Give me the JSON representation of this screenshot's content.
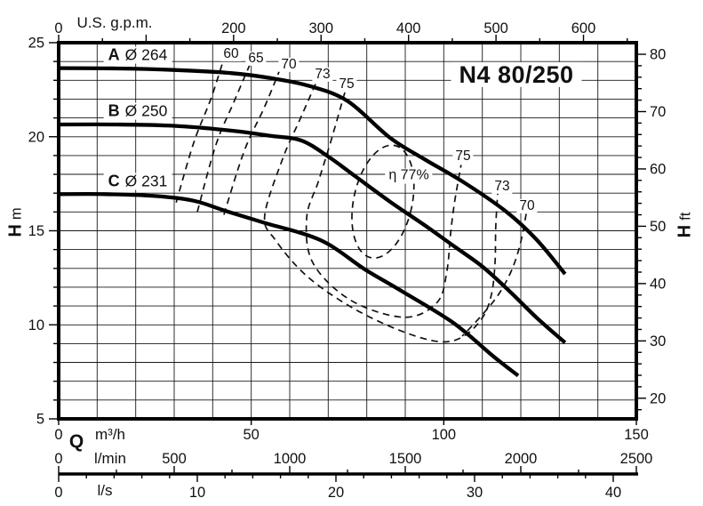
{
  "chart_data": {
    "type": "line",
    "title": "N4 80/250",
    "x_axes": {
      "us_gpm": {
        "label": "U.S. g.p.m.",
        "ticks_labeled": [
          0,
          200,
          300,
          400,
          500,
          600
        ],
        "minor_step": 50,
        "max": 650
      },
      "m3h": {
        "prefix": "Q",
        "label": "m³/h",
        "ticks_labeled": [
          0,
          50,
          100,
          150
        ],
        "range": [
          0,
          150
        ]
      },
      "lmin": {
        "label": "l/min",
        "ticks_labeled": [
          0,
          500,
          1000,
          1500,
          2000,
          2500
        ],
        "minor_step": 250,
        "max": 2500
      },
      "ls": {
        "label": "l/s",
        "ticks_labeled": [
          0,
          10,
          20,
          30,
          40
        ],
        "minor_step": 2,
        "max": 40
      }
    },
    "y_axes": {
      "h_m": {
        "label_bold": "H",
        "label_unit": "m",
        "range": [
          5,
          25
        ],
        "ticks_labeled": [
          5,
          10,
          15,
          20,
          25
        ],
        "minor_step": 1
      },
      "h_ft": {
        "label_bold": "H",
        "label_unit": "ft",
        "ticks_labeled": [
          20,
          30,
          40,
          50,
          60,
          70,
          80
        ],
        "minor_step": 2
      }
    },
    "curves": [
      {
        "id": "A",
        "diameter": "Ø 264",
        "points_q_h": [
          [
            0,
            23.65
          ],
          [
            15,
            23.63
          ],
          [
            30,
            23.55
          ],
          [
            45,
            23.38
          ],
          [
            55,
            23.12
          ],
          [
            65,
            22.7
          ],
          [
            75,
            21.9
          ],
          [
            86,
            19.95
          ],
          [
            95,
            18.8
          ],
          [
            105,
            17.6
          ],
          [
            116,
            16.05
          ],
          [
            124,
            14.55
          ],
          [
            131.5,
            12.7
          ]
        ]
      },
      {
        "id": "B",
        "diameter": "Ø 250",
        "points_q_h": [
          [
            0,
            20.65
          ],
          [
            15,
            20.65
          ],
          [
            30,
            20.58
          ],
          [
            45,
            20.32
          ],
          [
            55,
            20.05
          ],
          [
            63,
            19.8
          ],
          [
            70,
            18.95
          ],
          [
            77,
            17.9
          ],
          [
            86,
            16.55
          ],
          [
            95,
            15.3
          ],
          [
            102.5,
            14.2
          ],
          [
            110,
            13.1
          ],
          [
            117,
            11.8
          ],
          [
            124,
            10.4
          ],
          [
            131.5,
            9.05
          ]
        ]
      },
      {
        "id": "C",
        "diameter": "Ø 231",
        "points_q_h": [
          [
            0,
            16.95
          ],
          [
            12,
            16.95
          ],
          [
            25,
            16.85
          ],
          [
            35,
            16.6
          ],
          [
            43,
            16.08
          ],
          [
            53,
            15.45
          ],
          [
            68,
            14.5
          ],
          [
            79.5,
            12.95
          ],
          [
            89,
            11.8
          ],
          [
            102.5,
            10.1
          ],
          [
            113,
            8.3
          ],
          [
            119.3,
            7.3
          ]
        ]
      }
    ],
    "efficiency": {
      "labels": [
        {
          "text": "60"
        },
        {
          "text": "65"
        },
        {
          "text": "70"
        },
        {
          "text": "73"
        },
        {
          "text": "75"
        },
        {
          "text": "75"
        },
        {
          "text": "73"
        },
        {
          "text": "70"
        },
        {
          "text": "η 77%"
        }
      ],
      "contours": [
        {
          "value": 60,
          "points_q_h": [
            [
              30.5,
              16.5
            ],
            [
              35.1,
              19.7
            ],
            [
              39.5,
              22.0
            ],
            [
              42.9,
              24.15
            ]
          ]
        },
        {
          "value": 65,
          "points_q_h": [
            [
              36.0,
              16.0
            ],
            [
              40.8,
              19.55
            ],
            [
              45.5,
              21.85
            ],
            [
              50.1,
              24.05
            ]
          ]
        },
        {
          "value": 70,
          "points_q_h": [
            [
              42.9,
              15.85
            ],
            [
              48.2,
              19.25
            ],
            [
              53.5,
              21.6
            ],
            [
              58.2,
              23.95
            ]
          ]
        },
        {
          "value": 73,
          "points_q_h": [
            [
              66.7,
              22.8
            ],
            [
              62.5,
              20.85
            ],
            [
              58.2,
              18.85
            ],
            [
              53.5,
              15.8
            ],
            [
              56.3,
              14.5
            ],
            [
              64.4,
              12.6
            ],
            [
              75.9,
              10.95
            ],
            [
              88.6,
              9.7
            ],
            [
              99,
              9.1
            ],
            [
              105.2,
              9.4
            ],
            [
              110.1,
              10.4
            ],
            [
              112.4,
              11.65
            ],
            [
              113.3,
              13.3
            ],
            [
              113.5,
              15.2
            ],
            [
              114,
              17.0
            ]
          ]
        },
        {
          "value": 75,
          "points_q_h": [
            [
              74.3,
              22.35
            ],
            [
              70.6,
              19.7
            ],
            [
              67.4,
              17.6
            ],
            [
              64.4,
              15.7
            ],
            [
              66,
              13.3
            ],
            [
              75.9,
              11.3
            ],
            [
              89.8,
              10.4
            ],
            [
              98.3,
              11.2
            ],
            [
              100.8,
              12.85
            ],
            [
              101.8,
              14.9
            ],
            [
              102.9,
              16.65
            ],
            [
              104.5,
              18.5
            ]
          ]
        },
        {
          "value": 70,
          "points_q_h": [
            [
              121.4,
              15.9
            ],
            [
              119.8,
              14.25
            ],
            [
              117.5,
              12.85
            ],
            [
              114,
              11.55
            ],
            [
              109.4,
              10.4
            ],
            [
              104.8,
              9.4
            ]
          ]
        }
      ],
      "island": {
        "value": 77,
        "q": 84.2,
        "h": 16.55,
        "rq": 7.6,
        "rh": 3.05,
        "rotate_deg": 12
      }
    }
  }
}
